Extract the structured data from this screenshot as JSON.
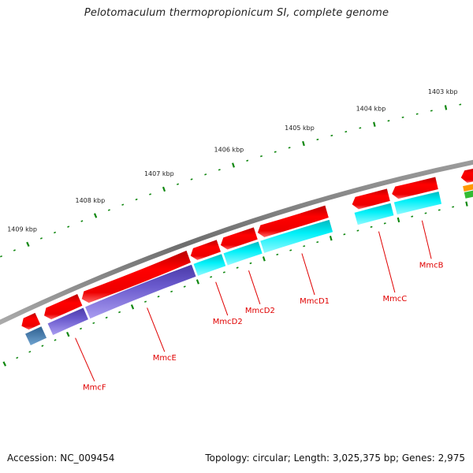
{
  "title": "Pelotomaculum thermopropionicum SI, complete genome",
  "footer": {
    "accession": "Accession: NC_009454",
    "summary": "Topology: circular; Length: 3,025,375 bp; Genes: 2,975"
  },
  "colors": {
    "backbone": "#888888",
    "forward_gene": "#ee0000",
    "tick": "#118811",
    "label": "#e00000",
    "cog_purple": "#6a5acd",
    "cog_cyan": "#00e5ee",
    "cog_blue": "#4682b4",
    "cog_orange": "#ff9900",
    "cog_green": "#33bb33"
  },
  "scale": {
    "unit": "kbp",
    "major_ticks": [
      {
        "label": "1403 kbp",
        "kbp": 1403
      },
      {
        "label": "1404 kbp",
        "kbp": 1404
      },
      {
        "label": "1405 kbp",
        "kbp": 1405
      },
      {
        "label": "1406 kbp",
        "kbp": 1406
      },
      {
        "label": "1407 kbp",
        "kbp": 1407
      },
      {
        "label": "1408 kbp",
        "kbp": 1408
      },
      {
        "label": "1409 kbp",
        "kbp": 1409
      }
    ],
    "minor_ticks_per_kbp": 5
  },
  "genes": [
    {
      "name": "",
      "start_kbp": 1409.3,
      "end_kbp": 1409.55,
      "cog": "blue"
    },
    {
      "name": "MmcF",
      "start_kbp": 1408.65,
      "end_kbp": 1409.2,
      "cog": "purple"
    },
    {
      "name": "MmcE",
      "start_kbp": 1407.0,
      "end_kbp": 1408.62,
      "cog": "purple"
    },
    {
      "name": "MmcD2",
      "start_kbp": 1406.55,
      "end_kbp": 1406.97,
      "cog": "cyan"
    },
    {
      "name": "MmcD2",
      "start_kbp": 1406.0,
      "end_kbp": 1406.52,
      "cog": "cyan"
    },
    {
      "name": "MmcD1",
      "start_kbp": 1404.95,
      "end_kbp": 1405.97,
      "cog": "cyan"
    },
    {
      "name": "MmcC",
      "start_kbp": 1404.05,
      "end_kbp": 1404.58,
      "cog": "cyan"
    },
    {
      "name": "MmcB",
      "start_kbp": 1403.35,
      "end_kbp": 1404.0,
      "cog": "cyan"
    },
    {
      "name": "",
      "start_kbp": 1402.75,
      "end_kbp": 1403.0,
      "cog": "orange-green"
    }
  ]
}
